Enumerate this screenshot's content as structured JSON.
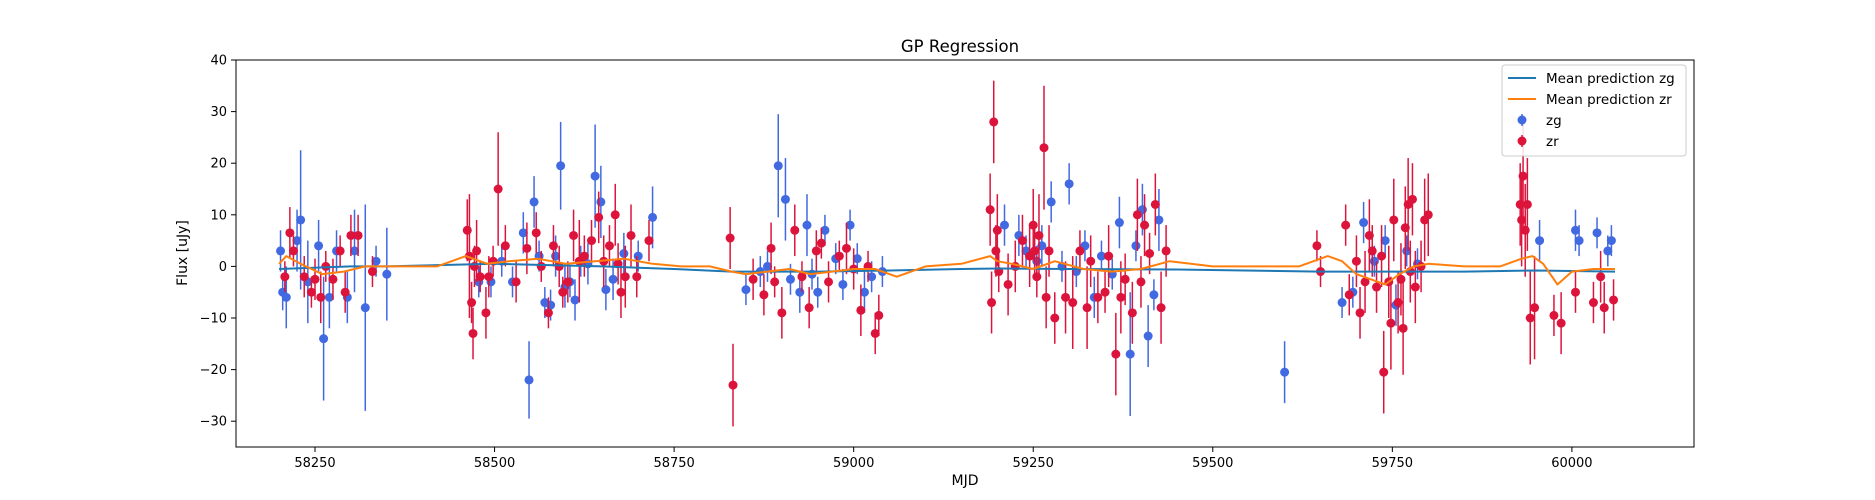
{
  "chart_data": {
    "type": "scatter",
    "title": "GP Regression",
    "xlabel": "MJD",
    "ylabel": "Flux [uJy]",
    "xlim": [
      58140,
      60170
    ],
    "ylim": [
      -35,
      40
    ],
    "xticks": [
      58250,
      58500,
      58750,
      59000,
      59250,
      59500,
      59750,
      60000
    ],
    "xtick_labels": [
      "58250",
      "58500",
      "58750",
      "59000",
      "59250",
      "59500",
      "59750",
      "60000"
    ],
    "yticks": [
      -30,
      -20,
      -10,
      0,
      10,
      20,
      30,
      40
    ],
    "ytick_labels": [
      "−30",
      "−20",
      "−10",
      "0",
      "10",
      "20",
      "30",
      "40"
    ],
    "grid": false,
    "legend_position": "top-right",
    "series": [
      {
        "name": "Mean prediction zg",
        "kind": "line",
        "color": "#1f77b4",
        "x": [
          58200,
          58300,
          58350,
          58500,
          58650,
          58750,
          58830,
          58950,
          59050,
          59150,
          59200,
          59300,
          59450,
          59650,
          59750,
          59850,
          59950,
          60060
        ],
        "y": [
          -0.5,
          0.0,
          0.0,
          0.5,
          0.0,
          -0.5,
          -1.0,
          -1.0,
          -0.8,
          -0.5,
          -0.4,
          -0.5,
          -0.6,
          -1.0,
          -1.0,
          -1.0,
          -0.8,
          -1.0
        ]
      },
      {
        "name": "Mean prediction zr",
        "kind": "line",
        "color": "#ff7f0e",
        "x": [
          58200,
          58210,
          58230,
          58260,
          58290,
          58320,
          58360,
          58420,
          58460,
          58470,
          58490,
          58520,
          58560,
          58600,
          58640,
          58680,
          58720,
          58760,
          58800,
          58830,
          58850,
          58880,
          58910,
          58940,
          58970,
          59000,
          59030,
          59060,
          59100,
          59150,
          59190,
          59200,
          59220,
          59250,
          59280,
          59320,
          59360,
          59400,
          59440,
          59500,
          59560,
          59620,
          59660,
          59680,
          59700,
          59720,
          59740,
          59760,
          59780,
          59800,
          59850,
          59900,
          59930,
          59945,
          59960,
          59980,
          60000,
          60030,
          60060
        ],
        "y": [
          0.5,
          2.0,
          0.5,
          -1.5,
          -1.0,
          0.0,
          0.0,
          0.0,
          2.0,
          1.5,
          0.5,
          1.0,
          1.5,
          0.5,
          1.0,
          1.5,
          0.5,
          0.0,
          0.0,
          -1.0,
          -1.5,
          -1.0,
          -0.5,
          -1.5,
          -1.0,
          -0.5,
          -0.5,
          -2.0,
          0.0,
          0.5,
          2.0,
          1.0,
          0.5,
          -0.5,
          1.0,
          -0.5,
          -1.0,
          -0.5,
          1.0,
          0.0,
          0.0,
          0.0,
          2.0,
          1.0,
          -1.5,
          -2.5,
          -3.5,
          -1.5,
          0.0,
          0.5,
          0.0,
          0.0,
          1.5,
          2.0,
          0.5,
          -3.5,
          -1.0,
          -0.5,
          -0.5
        ]
      },
      {
        "name": "zg",
        "kind": "errorbar",
        "color": "#4169e1",
        "x": [
          58202,
          58205,
          58210,
          58225,
          58230,
          58240,
          58255,
          58262,
          58270,
          58280,
          58295,
          58305,
          58320,
          58335,
          58350,
          58478,
          58495,
          58510,
          58525,
          58540,
          58548,
          58555,
          58562,
          58570,
          58578,
          58585,
          58592,
          58598,
          58605,
          58612,
          58620,
          58630,
          58640,
          58648,
          58655,
          58665,
          58680,
          58700,
          58720,
          58850,
          58870,
          58880,
          58895,
          58905,
          58912,
          58925,
          58935,
          58942,
          58950,
          58960,
          58975,
          58985,
          58995,
          59005,
          59015,
          59025,
          59040,
          59210,
          59230,
          59240,
          59255,
          59262,
          59275,
          59290,
          59300,
          59310,
          59322,
          59335,
          59345,
          59360,
          59370,
          59385,
          59393,
          59402,
          59410,
          59418,
          59425,
          59600,
          59680,
          59695,
          59710,
          59725,
          59740,
          59755,
          59770,
          59785,
          59955,
          60005,
          60010,
          60035,
          60050,
          60055
        ],
        "y": [
          3.0,
          -5.0,
          -6.0,
          5.0,
          9.0,
          -3.0,
          4.0,
          -14.0,
          -6.0,
          3.0,
          -6.0,
          3.0,
          -8.0,
          1.0,
          -1.5,
          -3.0,
          -3.0,
          1.0,
          -3.0,
          6.5,
          -22.0,
          12.5,
          2.0,
          -7.0,
          -7.5,
          2.0,
          19.5,
          -4.0,
          -3.0,
          -6.5,
          1.0,
          0.5,
          17.5,
          12.5,
          -4.5,
          -2.5,
          2.5,
          2.0,
          9.5,
          -4.5,
          -1.0,
          0.0,
          19.5,
          13.0,
          -2.5,
          -5.0,
          8.0,
          -1.5,
          -5.0,
          7.0,
          1.5,
          -3.5,
          8.0,
          1.5,
          -5.0,
          -2.0,
          -1.0,
          8.0,
          6.0,
          3.0,
          1.0,
          4.0,
          12.5,
          0.0,
          16.0,
          -1.0,
          4.0,
          -6.0,
          2.0,
          -1.5,
          8.5,
          -17.0,
          4.0,
          11.0,
          -13.5,
          -5.5,
          9.0,
          -20.5,
          -7.0,
          -5.0,
          8.5,
          1.0,
          5.0,
          -7.5,
          3.0,
          0.5,
          5.0,
          7.0,
          5.0,
          6.5,
          3.0,
          5.0
        ],
        "err": [
          4.0,
          3.5,
          6.0,
          6.0,
          13.5,
          8.0,
          5.0,
          12.0,
          6.0,
          4.0,
          5.0,
          8.0,
          20.0,
          3.0,
          9.0,
          3.0,
          3.0,
          3.0,
          3.0,
          4.0,
          7.5,
          5.0,
          3.0,
          3.0,
          3.0,
          4.0,
          8.5,
          4.0,
          3.0,
          4.0,
          3.0,
          4.0,
          10.0,
          7.0,
          4.0,
          4.0,
          4.0,
          3.0,
          6.0,
          3.0,
          3.0,
          3.0,
          10.0,
          8.0,
          3.0,
          4.0,
          6.0,
          3.0,
          3.0,
          3.0,
          3.0,
          3.0,
          3.0,
          3.0,
          4.0,
          3.0,
          3.0,
          4.0,
          4.0,
          3.0,
          3.0,
          4.0,
          4.0,
          3.0,
          4.0,
          3.0,
          3.0,
          4.0,
          3.0,
          3.0,
          5.0,
          12.0,
          3.0,
          5.0,
          6.0,
          3.0,
          6.0,
          6.0,
          3.0,
          3.0,
          4.0,
          3.0,
          3.0,
          4.0,
          3.0,
          3.0,
          4.0,
          4.0,
          3.0,
          3.0,
          3.0,
          3.0
        ]
      },
      {
        "name": "zr",
        "kind": "errorbar",
        "color": "#dc143c",
        "x": [
          58208,
          58215,
          58220,
          58235,
          58245,
          58250,
          58258,
          58265,
          58275,
          58285,
          58292,
          58300,
          58310,
          58330,
          58462,
          58465,
          58468,
          58470,
          58472,
          58475,
          58480,
          58488,
          58492,
          58498,
          58505,
          58515,
          58530,
          58545,
          58558,
          58565,
          58575,
          58582,
          58590,
          58595,
          58602,
          58610,
          58618,
          58625,
          58635,
          58645,
          58652,
          58660,
          58668,
          58672,
          58676,
          58682,
          58690,
          58698,
          58715,
          58828,
          58832,
          58860,
          58875,
          58885,
          58890,
          58900,
          58918,
          58928,
          58938,
          58948,
          58955,
          58965,
          58980,
          58990,
          59000,
          59010,
          59020,
          59030,
          59035,
          59190,
          59192,
          59195,
          59198,
          59200,
          59202,
          59215,
          59225,
          59235,
          59245,
          59250,
          59252,
          59255,
          59258,
          59265,
          59268,
          59272,
          59280,
          59295,
          59305,
          59315,
          59325,
          59330,
          59340,
          59350,
          59355,
          59365,
          59372,
          59378,
          59388,
          59395,
          59400,
          59405,
          59412,
          59420,
          59428,
          59435,
          59645,
          59650,
          59685,
          59690,
          59700,
          59705,
          59712,
          59718,
          59722,
          59728,
          59735,
          59738,
          59745,
          59748,
          59752,
          59758,
          59762,
          59765,
          59768,
          59772,
          59775,
          59778,
          59782,
          59790,
          59795,
          59800,
          59928,
          59930,
          59932,
          59935,
          59938,
          59942,
          59948,
          59975,
          59985,
          60005,
          60030,
          60040,
          60045,
          60058
        ],
        "y": [
          -2.0,
          6.5,
          3.0,
          -2.0,
          -5.0,
          -2.5,
          -6.0,
          0.0,
          -2.5,
          3.0,
          -5.0,
          6.0,
          6.0,
          -1.0,
          7.0,
          2.0,
          -7.0,
          -13.0,
          0.0,
          3.0,
          -2.0,
          -9.0,
          -2.0,
          1.0,
          15.0,
          4.0,
          -3.0,
          3.5,
          6.5,
          0.0,
          -9.0,
          4.0,
          0.0,
          -5.0,
          -3.0,
          6.0,
          1.0,
          2.0,
          5.0,
          9.5,
          1.0,
          4.0,
          10.0,
          0.5,
          -5.0,
          -2.0,
          6.0,
          -2.0,
          5.0,
          5.5,
          -23.0,
          -2.5,
          -5.5,
          3.5,
          -3.0,
          -9.0,
          7.0,
          -2.0,
          -8.0,
          3.0,
          4.5,
          -3.0,
          2.0,
          3.5,
          -0.5,
          -8.5,
          0.0,
          -13.0,
          -9.5,
          11.0,
          -7.0,
          28.0,
          3.0,
          7.0,
          -1.0,
          -3.5,
          0.0,
          5.0,
          2.0,
          8.0,
          3.0,
          -2.0,
          6.0,
          23.0,
          -6.0,
          3.0,
          -10.0,
          -6.0,
          -7.0,
          3.0,
          -8.0,
          1.0,
          -6.0,
          -5.0,
          2.0,
          -17.0,
          -6.0,
          -2.5,
          -9.0,
          10.0,
          -3.0,
          8.0,
          2.5,
          12.0,
          -8.0,
          3.0,
          4.0,
          -1.0,
          8.0,
          -5.5,
          1.0,
          -9.0,
          -3.0,
          6.0,
          3.0,
          -4.0,
          2.0,
          -20.5,
          -3.0,
          -11.0,
          9.0,
          -7.0,
          -2.5,
          -12.0,
          7.5,
          12.0,
          -1.0,
          13.0,
          -4.0,
          0.0,
          9.0,
          10.0,
          12.0,
          9.0,
          17.5,
          7.0,
          12.0,
          -10.0,
          -8.0,
          -9.5,
          -11.0,
          -5.0,
          -7.0,
          -2.0,
          -8.0,
          -6.5
        ],
        "err": [
          3.0,
          5.0,
          3.0,
          4.0,
          3.0,
          4.0,
          5.0,
          3.0,
          4.0,
          3.0,
          4.0,
          4.0,
          4.0,
          3.0,
          6.0,
          12.0,
          4.0,
          5.0,
          4.0,
          6.0,
          3.0,
          5.0,
          4.0,
          3.0,
          11.0,
          4.0,
          4.0,
          5.0,
          4.0,
          3.0,
          3.0,
          4.0,
          4.0,
          3.0,
          4.0,
          5.0,
          8.0,
          4.0,
          4.0,
          5.0,
          5.0,
          4.0,
          6.0,
          4.0,
          5.0,
          6.0,
          6.0,
          4.0,
          4.0,
          6.0,
          8.0,
          4.0,
          4.0,
          5.0,
          3.0,
          5.0,
          5.0,
          3.0,
          4.0,
          4.0,
          3.0,
          4.0,
          3.0,
          5.0,
          4.0,
          5.0,
          3.0,
          4.0,
          4.0,
          7.0,
          6.0,
          8.0,
          5.0,
          7.0,
          4.0,
          6.0,
          5.0,
          5.0,
          6.0,
          7.0,
          5.0,
          4.0,
          8.0,
          12.0,
          6.0,
          5.0,
          5.0,
          7.0,
          9.0,
          4.0,
          8.0,
          5.0,
          5.0,
          4.0,
          6.0,
          8.0,
          7.0,
          5.0,
          6.0,
          7.0,
          5.0,
          6.0,
          4.0,
          6.0,
          7.0,
          5.0,
          3.0,
          3.0,
          4.0,
          4.0,
          5.0,
          5.0,
          6.0,
          7.0,
          5.0,
          5.0,
          6.0,
          8.0,
          7.0,
          9.0,
          8.0,
          6.0,
          7.0,
          9.0,
          8.0,
          9.0,
          6.0,
          7.0,
          7.0,
          5.0,
          8.0,
          8.0,
          8.0,
          9.0,
          10.0,
          9.0,
          9.0,
          9.0,
          10.0,
          4.0,
          6.0,
          4.0,
          4.0,
          5.0,
          5.0,
          4.0
        ]
      }
    ]
  }
}
